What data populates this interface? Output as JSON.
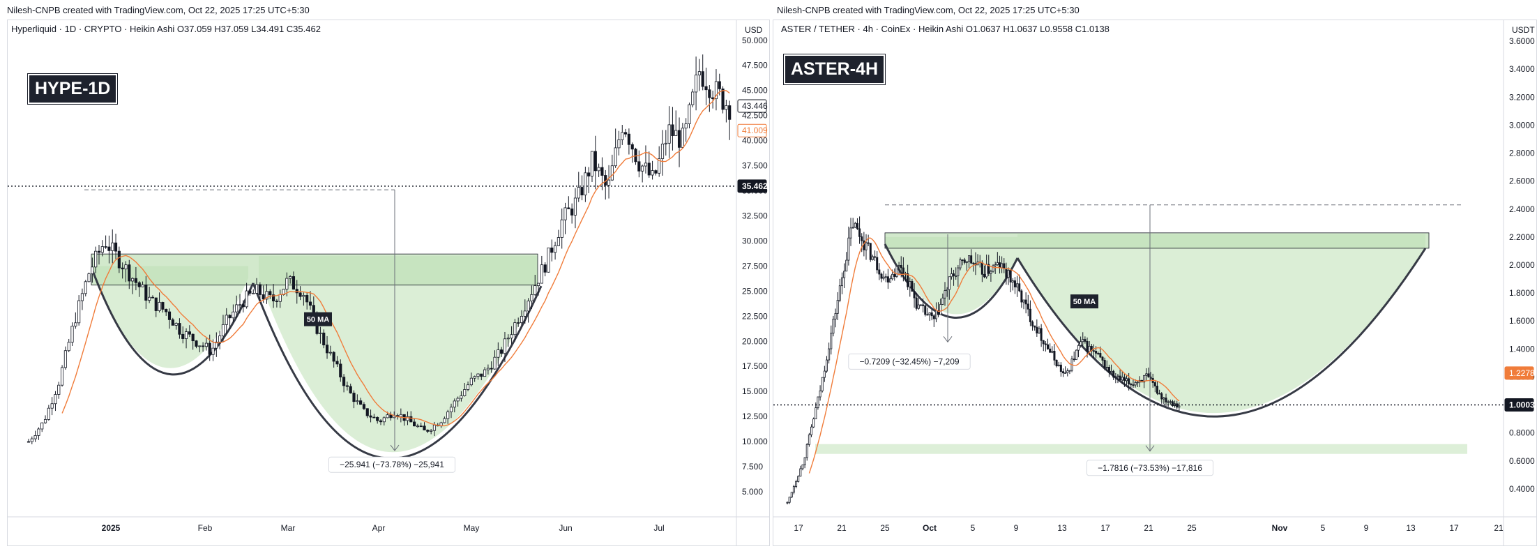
{
  "left": {
    "credit": "Nilesh-CNPB created with TradingView.com, Oct 22, 2025 17:25 UTC+5:30",
    "symbol_line": "Hyperliquid · 1D · CRYPTO · Heikin Ashi  O37.059  H37.059  L34.491  C35.462",
    "badge": "HYPE-1D",
    "currency": "USD",
    "ma_label": "50 MA",
    "measure_label": "−25.941 (−73.78%) −25,941",
    "price_labels": {
      "last": "43.446",
      "ma": "41.009",
      "hline": "35.462"
    },
    "colors": {
      "zone": "#cfe8c8",
      "ma": "#f07c3a",
      "candle": "#131722"
    }
  },
  "right": {
    "credit": "Nilesh-CNPB created with TradingView.com, Oct 22, 2025 17:25 UTC+5:30",
    "symbol_line": "ASTER / TETHER · 4h · CoinEx · Heikin Ashi  O1.0637  H1.0637  L0.9558  C1.0138",
    "badge": "ASTER-4H",
    "currency": "USDT",
    "ma_label": "50 MA",
    "measure_label_top": "−0.7209 (−32.45%) −7,209",
    "measure_label_bottom": "−1.7816 (−73.53%) −17,816",
    "price_labels": {
      "ma": "1.2278",
      "hline": "1.0003"
    },
    "colors": {
      "zone": "#cfe8c8",
      "ma": "#f07c3a",
      "candle": "#131722"
    }
  },
  "chart_data": [
    {
      "type": "candlestick",
      "title": "HYPE-1D",
      "ylabel": "USD",
      "ylim": [
        2.5,
        52
      ],
      "y_ticks": [
        "50.000",
        "47.500",
        "45.000",
        "42.500",
        "40.000",
        "37.500",
        "35.000",
        "32.500",
        "30.000",
        "27.500",
        "25.000",
        "22.500",
        "20.000",
        "17.500",
        "15.000",
        "12.500",
        "10.000",
        "7.500",
        "5.000"
      ],
      "x_ticks": [
        "2025",
        "Feb",
        "Mar",
        "Apr",
        "May",
        "Jun",
        "Jul"
      ],
      "ohlc_summary": {
        "open": 37.059,
        "high": 37.059,
        "low": 34.491,
        "close": 35.462
      },
      "close_approx": [
        10,
        12,
        16,
        22,
        27,
        30,
        28,
        26,
        24,
        23,
        21,
        20,
        19,
        22,
        24,
        25,
        24,
        26,
        25,
        21,
        18,
        15,
        13,
        12,
        13,
        12,
        11,
        12,
        14,
        16,
        17,
        19,
        22,
        25,
        28,
        32,
        34,
        38,
        35,
        42,
        38,
        36,
        41,
        40,
        47,
        45,
        43.4
      ],
      "ma50_last": 41.009,
      "horizontal_line": 35.462,
      "pattern": "cup and handle",
      "annotations": [
        "50 MA",
        "−25.941 (−73.78%) −25,941"
      ]
    },
    {
      "type": "candlestick",
      "title": "ASTER-4H",
      "ylabel": "USDT",
      "ylim": [
        0.2,
        3.75
      ],
      "y_ticks": [
        "3.6000",
        "3.4000",
        "3.2000",
        "3.0000",
        "2.8000",
        "2.6000",
        "2.4000",
        "2.2000",
        "2.0000",
        "1.8000",
        "1.6000",
        "1.4000",
        "1.2000",
        "1.0000",
        "0.8000",
        "0.6000",
        "0.4000"
      ],
      "x_ticks": [
        "17",
        "21",
        "25",
        "Oct",
        "5",
        "9",
        "13",
        "17",
        "21",
        "25",
        "Nov",
        "5",
        "9",
        "13",
        "17",
        "21"
      ],
      "ohlc_summary": {
        "open": 1.0637,
        "high": 1.0637,
        "low": 0.9558,
        "close": 1.0138
      },
      "close_approx": [
        0.3,
        0.6,
        1.1,
        1.7,
        2.3,
        2.1,
        1.9,
        2.0,
        1.7,
        1.6,
        1.9,
        2.05,
        1.95,
        2.0,
        1.85,
        1.6,
        1.4,
        1.2,
        1.45,
        1.35,
        1.2,
        1.15,
        1.2,
        1.05,
        1.0
      ],
      "ma50_last": 1.2278,
      "horizontal_line": 1.0003,
      "pattern": "cup and handle",
      "annotations": [
        "50 MA",
        "−0.7209 (−32.45%) −7,209",
        "−1.7816 (−73.53%) −17,816"
      ]
    }
  ]
}
